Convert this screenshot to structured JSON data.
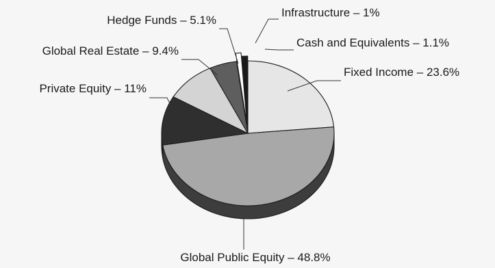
{
  "chart_data": {
    "type": "pie",
    "title": "",
    "categories": [
      "Fixed Income",
      "Global Public Equity",
      "Private Equity",
      "Global Real Estate",
      "Hedge Funds",
      "Infrastructure",
      "Cash and Equivalents"
    ],
    "values": [
      23.6,
      48.8,
      11,
      9.4,
      5.1,
      1,
      1.1
    ],
    "labels": [
      "Fixed Income – 23.6%",
      "Global Public Equity – 48.8%",
      "Private Equity – 11%",
      "Global Real Estate – 9.4%",
      "Hedge Funds – 5.1%",
      "Infrastructure – 1%",
      "Cash and Equivalents – 1.1%"
    ],
    "colors": [
      "#e6e6e6",
      "#a8a8a8",
      "#2f2f2f",
      "#d4d4d4",
      "#5e5e5e",
      "#ffffff",
      "#1a1a1a"
    ],
    "side_colors": [
      "#b9b9b9",
      "#3d3d3d",
      "#1b1b1b",
      "#a4a4a4",
      "#333333",
      "#d8d8d8",
      "#101010"
    ],
    "style": "3d",
    "exploded": [
      "Infrastructure",
      "Cash and Equivalents"
    ],
    "legend": "none"
  }
}
